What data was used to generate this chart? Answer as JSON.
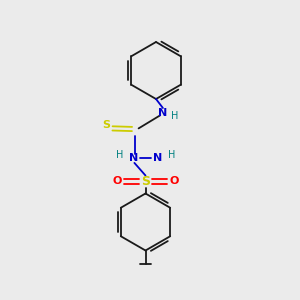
{
  "bg_color": "#ebebeb",
  "bond_color": "#1a1a1a",
  "bond_lw": 1.3,
  "colors": {
    "N": "#0000cc",
    "S_thio": "#cccc00",
    "S_sulf": "#cccc00",
    "O": "#ff0000",
    "H": "#008080"
  },
  "xlim": [
    0,
    10
  ],
  "ylim": [
    0,
    10
  ],
  "figsize": [
    3.0,
    3.0
  ],
  "dpi": 100
}
